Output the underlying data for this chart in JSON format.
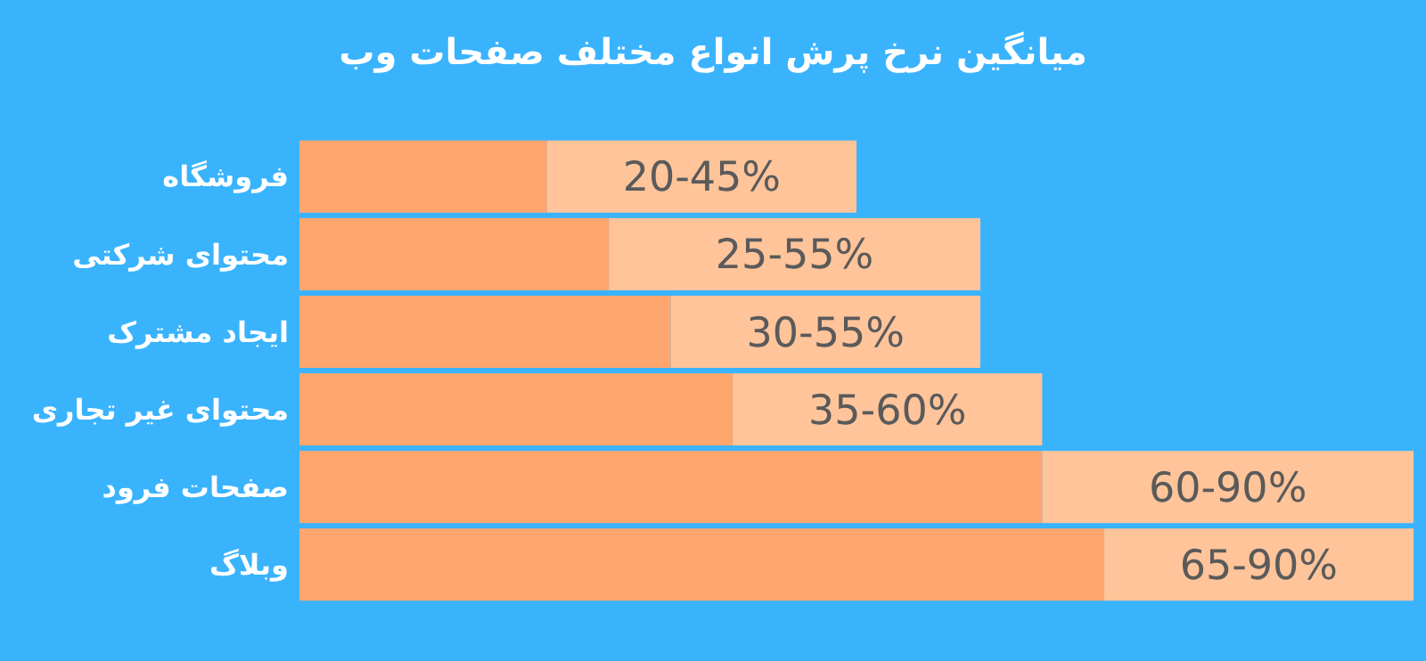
{
  "chart_data": {
    "type": "bar",
    "title": "میانگین نرخ پرش انواع مختلف صفحات وب",
    "orientation": "horizontal",
    "stacked": true,
    "categories": [
      "فروشگاه",
      "محتوای شرکتی",
      "ایجاد مشترک",
      "محتوای غیر تجاری",
      "صفحات فرود",
      "وبلاگ"
    ],
    "series": [
      {
        "color": "#ffa66e",
        "values": [
          20,
          25,
          30,
          35,
          60,
          65
        ],
        "value_labels": [
          "20-45%",
          "25-55%",
          "30-55%",
          "35-60%",
          "60-90%",
          "65-90%"
        ]
      },
      {
        "color": "#ffc49a",
        "values": [
          25,
          30,
          25,
          25,
          30,
          25
        ]
      }
    ],
    "tick_labels": "y",
    "grid": false
  }
}
